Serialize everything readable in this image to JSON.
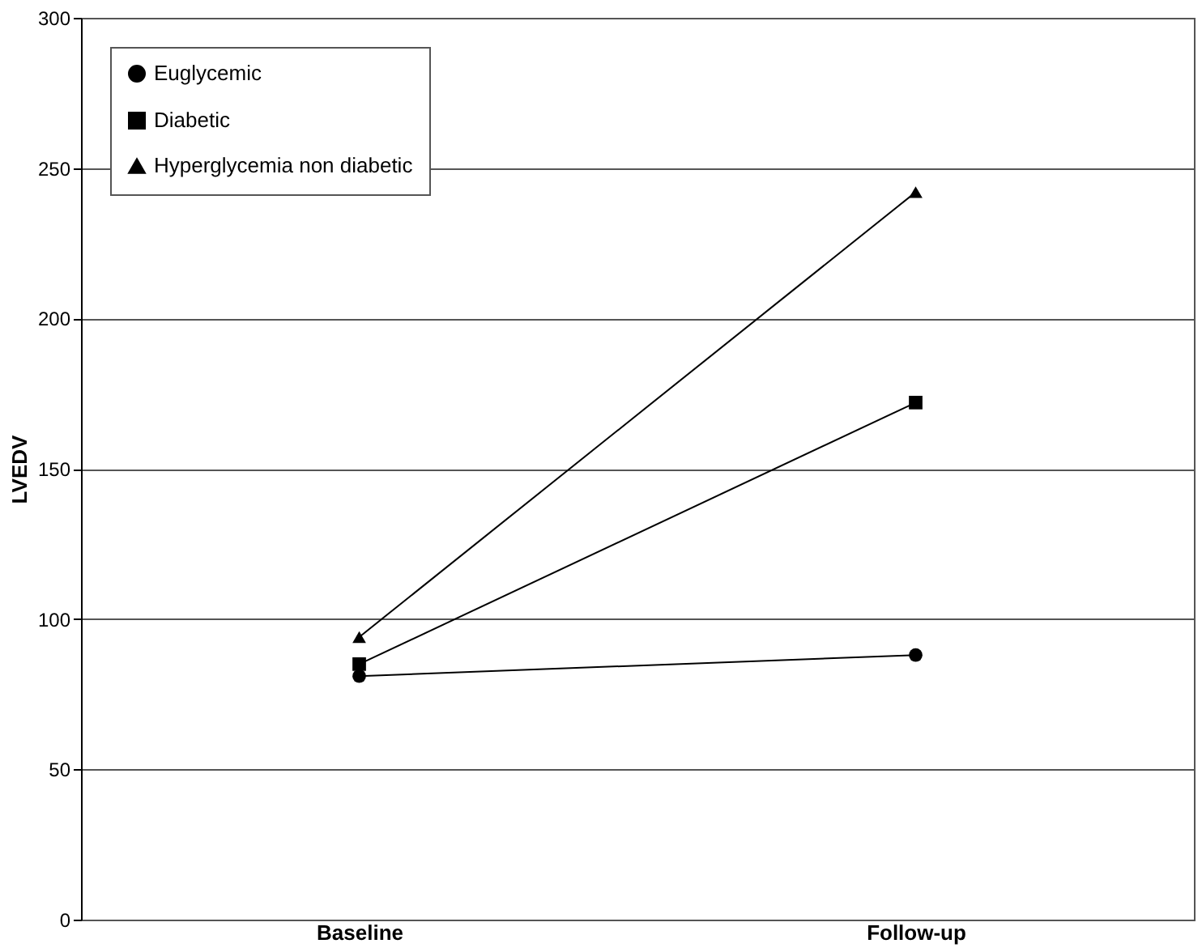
{
  "chart_data": {
    "type": "line",
    "ylabel": "LVEDV",
    "categories": [
      "Baseline",
      "Follow-up"
    ],
    "series": [
      {
        "name": "Euglycemic",
        "color": "#000000",
        "marker": "circle",
        "values": [
          81,
          88
        ]
      },
      {
        "name": "Diabetic",
        "color": "#000000",
        "marker": "square",
        "values": [
          85,
          172
        ]
      },
      {
        "name": "Hyperglycemia non diabetic",
        "color": "#000000",
        "marker": "triangle",
        "values": [
          94,
          242
        ]
      }
    ],
    "ylim": [
      0,
      300
    ],
    "yticks": [
      0,
      50,
      100,
      150,
      200,
      250,
      300
    ],
    "grid": "y",
    "legend": "top left",
    "line_style": "solid"
  }
}
